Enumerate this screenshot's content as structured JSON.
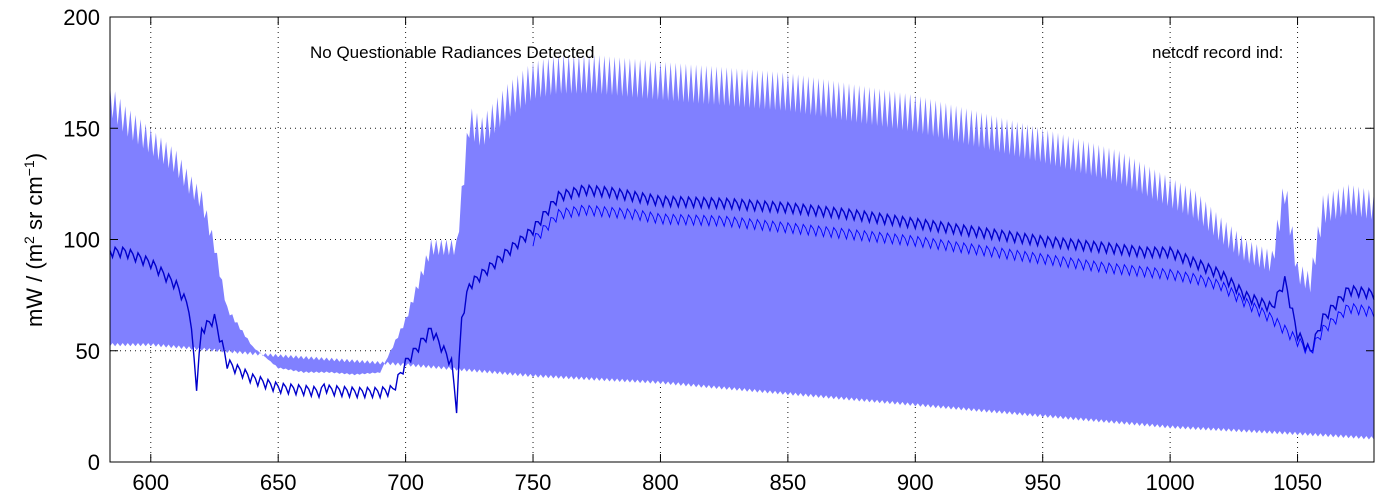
{
  "chart_data": {
    "type": "area",
    "title_visible": "",
    "xlabel": "",
    "ylabel_parts": {
      "main": "mW / (m",
      "sup1": "2",
      "mid": " sr cm",
      "sup2": "−1",
      "end": ")"
    },
    "xlim": [
      584,
      1080
    ],
    "ylim": [
      0,
      200
    ],
    "xticks": [
      600,
      650,
      700,
      750,
      800,
      850,
      900,
      950,
      1000,
      1050
    ],
    "yticks": [
      0,
      50,
      100,
      150,
      200
    ],
    "grid": true,
    "annotations": [
      {
        "text": "No Questionable Radiances Detected"
      },
      {
        "text": "netcdf record ind:"
      }
    ],
    "colors": {
      "band": "#8080ff",
      "mean": "#0000cc",
      "second": "#0000ff"
    },
    "series": [
      {
        "type": "band",
        "upper": {
          "x": [
            584,
            590,
            600,
            610,
            615,
            620,
            625,
            630,
            640,
            650,
            660,
            670,
            680,
            690,
            700,
            710,
            720,
            725,
            730,
            740,
            750,
            760,
            775,
            800,
            850,
            900,
            950,
            980,
            1000,
            1010,
            1020,
            1030,
            1040,
            1045,
            1050,
            1055,
            1060,
            1070,
            1080
          ],
          "y": [
            170,
            160,
            150,
            140,
            130,
            122,
            100,
            70,
            52,
            42,
            40,
            40,
            39,
            40,
            65,
            100,
            100,
            160,
            155,
            170,
            180,
            183,
            183,
            180,
            175,
            165,
            150,
            140,
            128,
            122,
            110,
            100,
            95,
            130,
            90,
            85,
            120,
            125,
            122
          ]
        },
        "lower": {
          "x": [
            584,
            600,
            650,
            700,
            750,
            800,
            850,
            900,
            950,
            1000,
            1050,
            1080
          ],
          "y": [
            52,
            52,
            47,
            43,
            38,
            35,
            30,
            25,
            20,
            15,
            12,
            10
          ]
        }
      },
      {
        "type": "line",
        "x": [
          584,
          590,
          600,
          610,
          615,
          618,
          620,
          625,
          630,
          640,
          650,
          660,
          667,
          668,
          670,
          680,
          690,
          695,
          700,
          710,
          718,
          720,
          722,
          725,
          730,
          740,
          750,
          760,
          770,
          780,
          790,
          800,
          825,
          850,
          875,
          900,
          925,
          950,
          975,
          990,
          1000,
          1010,
          1020,
          1030,
          1040,
          1045,
          1050,
          1055,
          1060,
          1070,
          1080
        ],
        "y": [
          95,
          95,
          90,
          80,
          70,
          35,
          60,
          65,
          45,
          38,
          34,
          33,
          32,
          35,
          33,
          32,
          32,
          33,
          45,
          60,
          45,
          25,
          65,
          80,
          85,
          95,
          105,
          120,
          123,
          122,
          120,
          118,
          117,
          115,
          112,
          108,
          104,
          100,
          97,
          95,
          95,
          90,
          85,
          75,
          70,
          82,
          58,
          50,
          65,
          78,
          76
        ]
      },
      {
        "type": "line",
        "x": [
          750,
          760,
          770,
          780,
          790,
          800,
          825,
          850,
          875,
          900,
          925,
          950,
          975,
          1000,
          1010,
          1020,
          1030,
          1040,
          1050,
          1055,
          1060,
          1070,
          1080
        ],
        "y": [
          100,
          112,
          114,
          113,
          112,
          110,
          109,
          106,
          103,
          100,
          96,
          92,
          88,
          85,
          83,
          80,
          72,
          65,
          55,
          50,
          60,
          70,
          68
        ]
      }
    ]
  }
}
